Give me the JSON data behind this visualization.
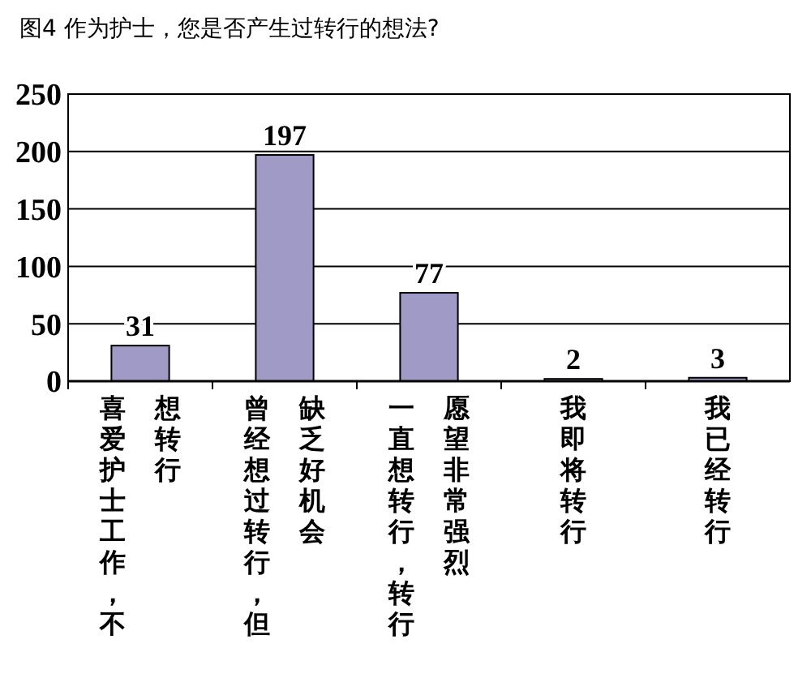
{
  "chart_data": {
    "type": "bar",
    "title": "图4 作为护士，您是否产生过转行的想法?",
    "categories": [
      "喜爱护士工作，不想转行",
      "曾经想过转行，但缺乏好机会",
      "一直想转行，转行愿望非常强烈",
      "我即将转行",
      "我已经转行"
    ],
    "values": [
      31,
      197,
      77,
      2,
      3
    ],
    "color": "#9f9ac6",
    "ylim": [
      0,
      250
    ],
    "yticks": [
      0,
      50,
      100,
      150,
      200,
      250
    ],
    "grid": "y",
    "data_labels": true
  }
}
